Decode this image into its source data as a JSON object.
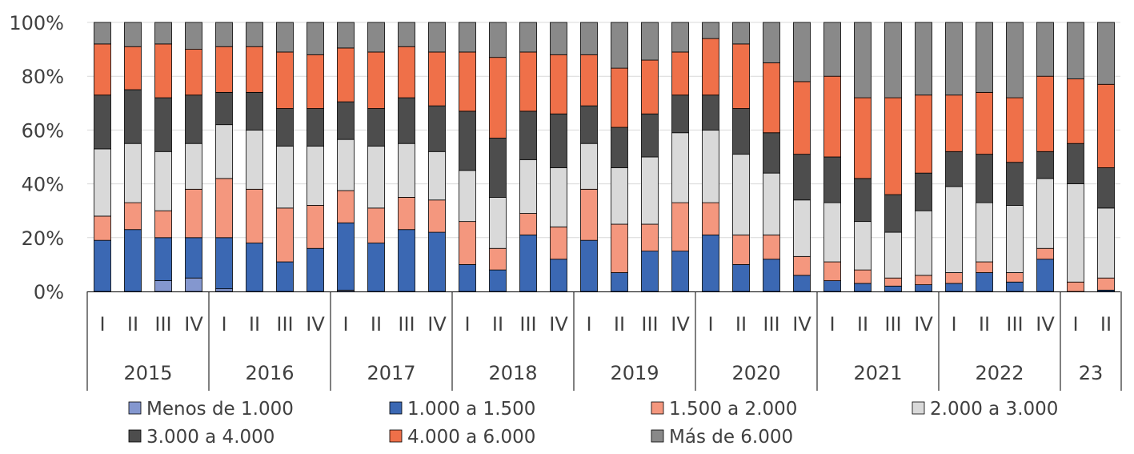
{
  "chart_data": {
    "type": "bar",
    "stacked": true,
    "percent": true,
    "title": "",
    "xlabel": "",
    "ylabel": "",
    "ylim": [
      0,
      100
    ],
    "y_ticks": [
      "0%",
      "20%",
      "40%",
      "60%",
      "80%",
      "100%"
    ],
    "legend_position": "bottom",
    "series": [
      {
        "name": "Menos de 1.000",
        "color": "#8497cf"
      },
      {
        "name": "1.000 a 1.500",
        "color": "#3b68b3"
      },
      {
        "name": "1.500 a 2.000",
        "color": "#f4977e"
      },
      {
        "name": "2.000 a 3.000",
        "color": "#d9d9d9"
      },
      {
        "name": "3.000 a 4.000",
        "color": "#4d4d4d"
      },
      {
        "name": "4.000 a 6.000",
        "color": "#ef7049"
      },
      {
        "name": "Más de 6.000",
        "color": "#898989"
      }
    ],
    "groups": [
      {
        "year": "2015",
        "quarters": [
          {
            "label": "I",
            "values": [
              0,
              19,
              9,
              25,
              20,
              19,
              8
            ]
          },
          {
            "label": "II",
            "values": [
              0,
              23,
              10,
              22,
              20,
              16,
              9
            ]
          },
          {
            "label": "III",
            "values": [
              4,
              16,
              10,
              22,
              20,
              20,
              8
            ]
          },
          {
            "label": "IV",
            "values": [
              5,
              15,
              18,
              17,
              18,
              17,
              10
            ]
          }
        ]
      },
      {
        "year": "2016",
        "quarters": [
          {
            "label": "I",
            "values": [
              1,
              19,
              22,
              20,
              12,
              17,
              9
            ]
          },
          {
            "label": "II",
            "values": [
              0,
              18,
              20,
              22,
              14,
              17,
              9
            ]
          },
          {
            "label": "III",
            "values": [
              0,
              11,
              20,
              23,
              14,
              21,
              11
            ]
          },
          {
            "label": "IV",
            "values": [
              0,
              16,
              16,
              22,
              14,
              20,
              12
            ]
          }
        ]
      },
      {
        "year": "2017",
        "quarters": [
          {
            "label": "I",
            "values": [
              0.5,
              25,
              12,
              19,
              14,
              20,
              9.5
            ]
          },
          {
            "label": "II",
            "values": [
              0,
              18,
              13,
              23,
              14,
              21,
              11
            ]
          },
          {
            "label": "III",
            "values": [
              0,
              23,
              12,
              20,
              17,
              19,
              9
            ]
          },
          {
            "label": "IV",
            "values": [
              0,
              22,
              12,
              18,
              17,
              20,
              11
            ]
          }
        ]
      },
      {
        "year": "2018",
        "quarters": [
          {
            "label": "I",
            "values": [
              0,
              10,
              16,
              19,
              22,
              22,
              11
            ]
          },
          {
            "label": "II",
            "values": [
              0,
              8,
              8,
              19,
              22,
              30,
              13
            ]
          },
          {
            "label": "III",
            "values": [
              0,
              21,
              8,
              20,
              18,
              22,
              11
            ]
          },
          {
            "label": "IV",
            "values": [
              0,
              12,
              12,
              22,
              20,
              22,
              12
            ]
          }
        ]
      },
      {
        "year": "2019",
        "quarters": [
          {
            "label": "I",
            "values": [
              0,
              19,
              19,
              17,
              14,
              19,
              12
            ]
          },
          {
            "label": "II",
            "values": [
              0,
              7,
              18,
              21,
              15,
              22,
              17
            ]
          },
          {
            "label": "III",
            "values": [
              0,
              15,
              10,
              25,
              16,
              20,
              14
            ]
          },
          {
            "label": "IV",
            "values": [
              0,
              15,
              18,
              26,
              14,
              16,
              11
            ]
          }
        ]
      },
      {
        "year": "2020",
        "quarters": [
          {
            "label": "I",
            "values": [
              0,
              21,
              12,
              27,
              13,
              21,
              6
            ]
          },
          {
            "label": "II",
            "values": [
              0,
              10,
              11,
              30,
              17,
              24,
              8
            ]
          },
          {
            "label": "III",
            "values": [
              0,
              12,
              9,
              23,
              15,
              26,
              15
            ]
          },
          {
            "label": "IV",
            "values": [
              0,
              6,
              7,
              21,
              17,
              27,
              22
            ]
          }
        ]
      },
      {
        "year": "2021",
        "quarters": [
          {
            "label": "I",
            "values": [
              0,
              4,
              7,
              22,
              17,
              30,
              20
            ]
          },
          {
            "label": "II",
            "values": [
              0,
              3,
              5,
              18,
              16,
              30,
              28
            ]
          },
          {
            "label": "III",
            "values": [
              0,
              2,
              3,
              17,
              14,
              36,
              28
            ]
          },
          {
            "label": "IV",
            "values": [
              0,
              2.5,
              3.5,
              24,
              14,
              29,
              27
            ]
          }
        ]
      },
      {
        "year": "2022",
        "quarters": [
          {
            "label": "I",
            "values": [
              0,
              3,
              4,
              32,
              13,
              21,
              27
            ]
          },
          {
            "label": "II",
            "values": [
              0,
              7,
              4,
              22,
              18,
              23,
              26
            ]
          },
          {
            "label": "III",
            "values": [
              0,
              3.5,
              3.5,
              25,
              16,
              24,
              28
            ]
          },
          {
            "label": "IV",
            "values": [
              0,
              12,
              4,
              26,
              10,
              28,
              20
            ]
          }
        ]
      },
      {
        "year": "23",
        "quarters": [
          {
            "label": "I",
            "values": [
              0,
              0,
              3.5,
              36.5,
              15,
              24,
              21
            ]
          },
          {
            "label": "II",
            "values": [
              0,
              0.5,
              4.5,
              26,
              15,
              31,
              23
            ]
          }
        ]
      }
    ]
  }
}
